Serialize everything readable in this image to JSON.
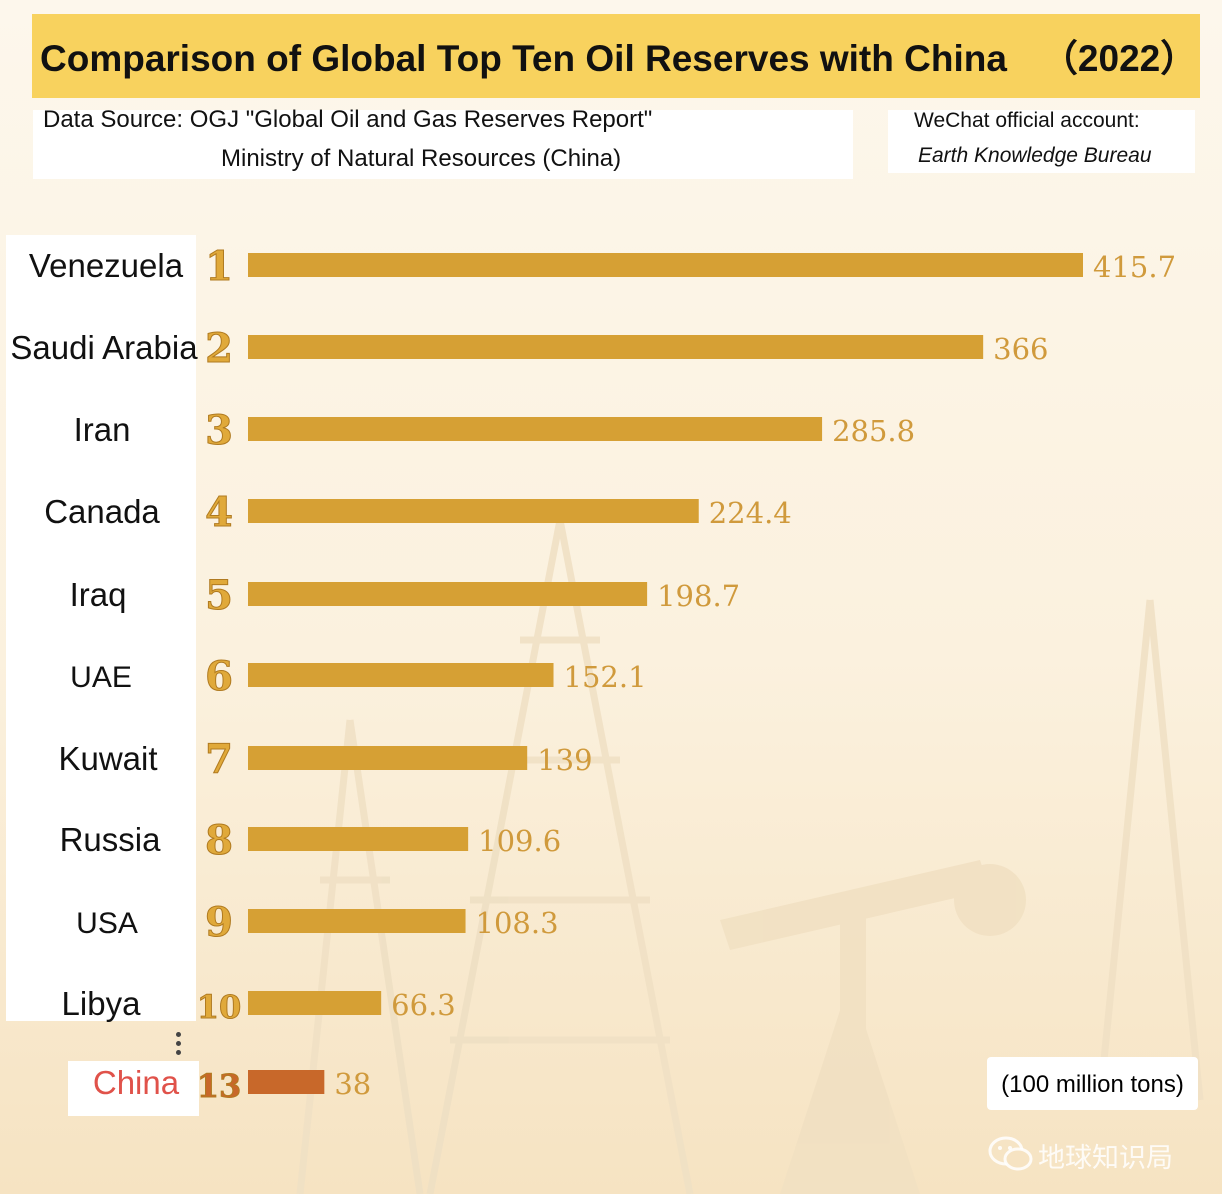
{
  "title": "Comparison of Global Top Ten Oil Reserves with China",
  "title_year": "（2022）",
  "source": {
    "line1": "Data Source: OGJ \"Global Oil and Gas Reserves Report\"",
    "line2": "Ministry of Natural Resources (China)"
  },
  "wechat": {
    "line1": "WeChat official account:",
    "line2": "Earth Knowledge Bureau"
  },
  "unit_label": "(100 million tons)",
  "footer_watermark": "地球知识局",
  "colors": {
    "title_bg": "#f8d25e",
    "bar": "#d6a034",
    "bar_highlight": "#c8682a",
    "rank": "#e0a93a",
    "value_text": "#d09a3c",
    "china_label": "#e0524a"
  },
  "chart_data": {
    "type": "bar",
    "orientation": "horizontal",
    "categories": [
      "Venezuela",
      "Saudi Arabia",
      "Iran",
      "Canada",
      "Iraq",
      "UAE",
      "Kuwait",
      "Russia",
      "USA",
      "Libya",
      "China"
    ],
    "ranks": [
      "1",
      "2",
      "3",
      "4",
      "5",
      "6",
      "7",
      "8",
      "9",
      "10",
      "13"
    ],
    "values": [
      415.7,
      366,
      285.8,
      224.4,
      198.7,
      152.1,
      139,
      109.6,
      108.3,
      66.3,
      38
    ],
    "value_labels": [
      "415.7",
      "366",
      "285.8",
      "224.4",
      "198.7",
      "152.1",
      "139",
      "109.6",
      "108.3",
      "66.3",
      "38"
    ],
    "highlight": "China",
    "unit": "(100 million tons)",
    "xlim": [
      0,
      415.7
    ],
    "grid": false,
    "legend": "none"
  }
}
